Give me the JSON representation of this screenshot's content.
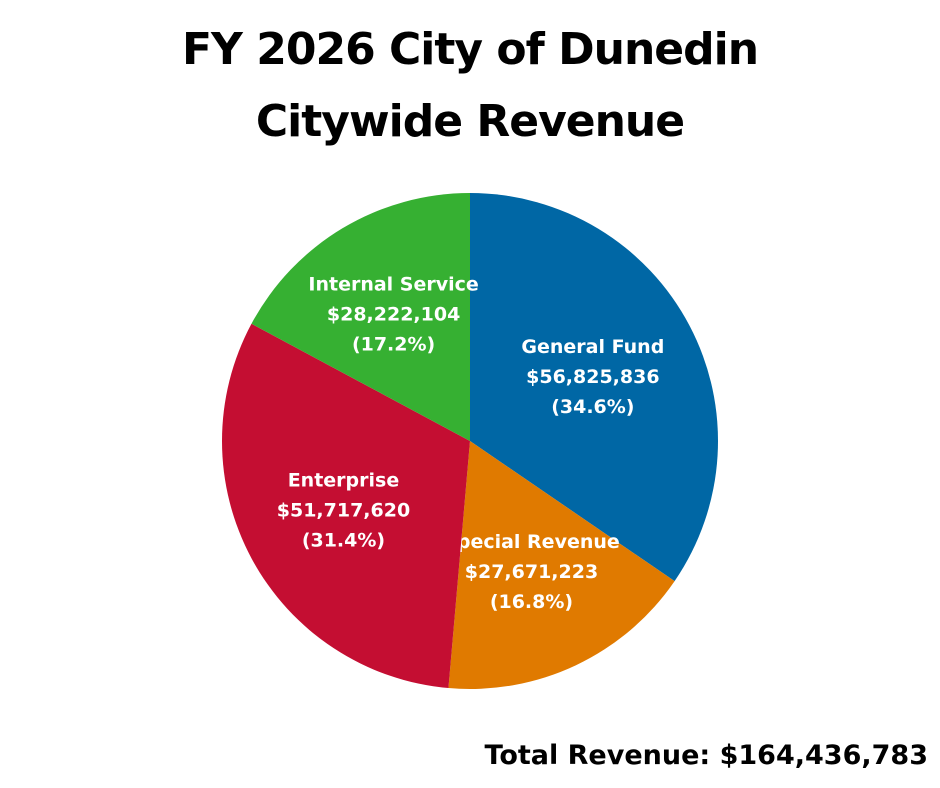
{
  "chart_data": {
    "type": "pie",
    "title": [
      "FY 2026 City of Dunedin",
      "Citywide Revenue"
    ],
    "slices": [
      {
        "name": "General Fund",
        "amount": "$56,825,836",
        "percent_label": "(34.6%)",
        "value": 56825836,
        "color": "#0067a5"
      },
      {
        "name": "Special Revenue",
        "amount": "$27,671,223",
        "percent_label": "(16.8%)",
        "value": 27671223,
        "color": "#e07a00"
      },
      {
        "name": "Enterprise",
        "amount": "$51,717,620",
        "percent_label": "(31.4%)",
        "value": 51717620,
        "color": "#c40e32"
      },
      {
        "name": "Internal Service",
        "amount": "$28,222,104",
        "percent_label": "(17.2%)",
        "value": 28222104,
        "color": "#36b032"
      }
    ],
    "total_label": "Total Revenue: $164,436,783"
  }
}
